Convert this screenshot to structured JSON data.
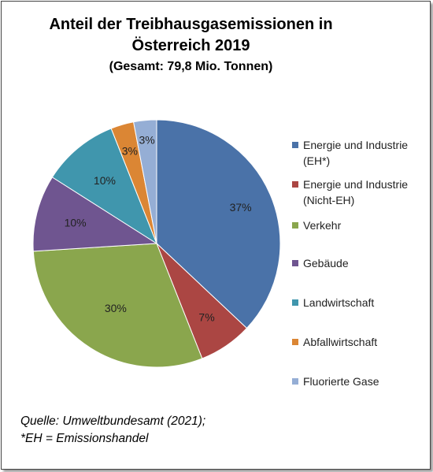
{
  "chart_data": {
    "type": "pie",
    "title": "Anteil der Treibhausgasemissionen in Österreich 2019",
    "subtitle": "(Gesamt: 79,8 Mio. Tonnen)",
    "slices": [
      {
        "label": "Energie und Industrie (EH*)",
        "value": 37,
        "display": "37%",
        "color": "#4a72a8"
      },
      {
        "label": "Energie und Industrie (Nicht-EH)",
        "value": 7,
        "display": "7%",
        "color": "#ab4643"
      },
      {
        "label": "Verkehr",
        "value": 30,
        "display": "30%",
        "color": "#8aa64d"
      },
      {
        "label": "Gebäude",
        "value": 10,
        "display": "10%",
        "color": "#6f5590"
      },
      {
        "label": "Landwirtschaft",
        "value": 10,
        "display": "10%",
        "color": "#4096ad"
      },
      {
        "label": "Abfallwirtschaft",
        "value": 3,
        "display": "3%",
        "color": "#db8634"
      },
      {
        "label": "Fluorierte Gase",
        "value": 3,
        "display": "3%",
        "color": "#95aed5"
      }
    ],
    "legend_position": "right"
  },
  "source": {
    "line1": "Quelle: Umweltbundesamt (2021);",
    "line2": "*EH = Emissionshandel"
  }
}
